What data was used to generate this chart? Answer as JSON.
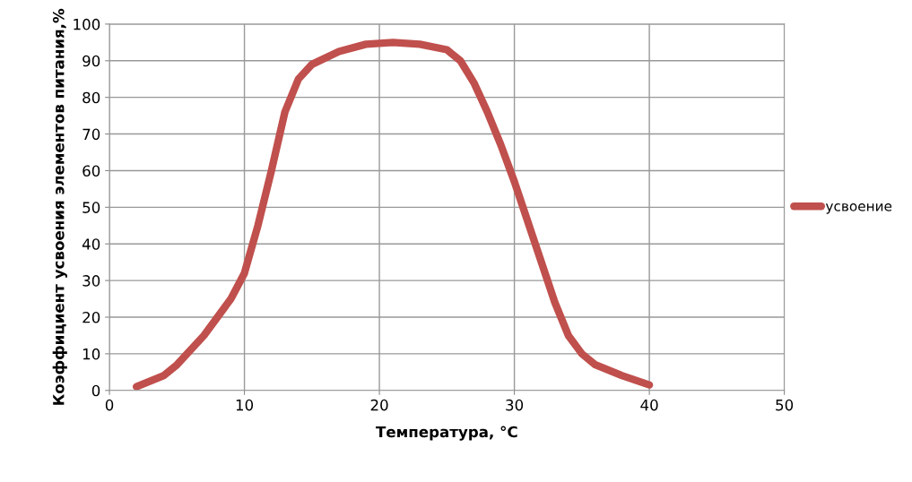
{
  "chart_data": {
    "type": "line",
    "xlabel": "Температура, °C",
    "ylabel": "Коэффициент усвоения элементов питания,%",
    "xlim": [
      0,
      50
    ],
    "xticks": [
      0,
      10,
      20,
      30,
      40,
      50
    ],
    "ylim": [
      0,
      100
    ],
    "yticks": [
      0,
      10,
      20,
      30,
      40,
      50,
      60,
      70,
      80,
      90,
      100
    ],
    "grid": true,
    "legend": "right",
    "marker": "none",
    "line_style": "solid",
    "series": [
      {
        "name": "усвоение",
        "color": "#c0504d",
        "x": [
          2,
          4,
          5,
          7,
          9,
          10,
          11,
          12,
          13,
          14,
          15,
          17,
          19,
          21,
          23,
          25,
          26,
          27,
          28,
          29,
          30,
          31,
          32,
          33,
          34,
          35,
          36,
          38,
          40
        ],
        "values": [
          1,
          4,
          7,
          15,
          25,
          32,
          45,
          60,
          76,
          85,
          89,
          92.5,
          94.5,
          95,
          94.5,
          93,
          90,
          84,
          76,
          67,
          57,
          46,
          35,
          24,
          15,
          10,
          7,
          4,
          1.5
        ]
      }
    ]
  }
}
